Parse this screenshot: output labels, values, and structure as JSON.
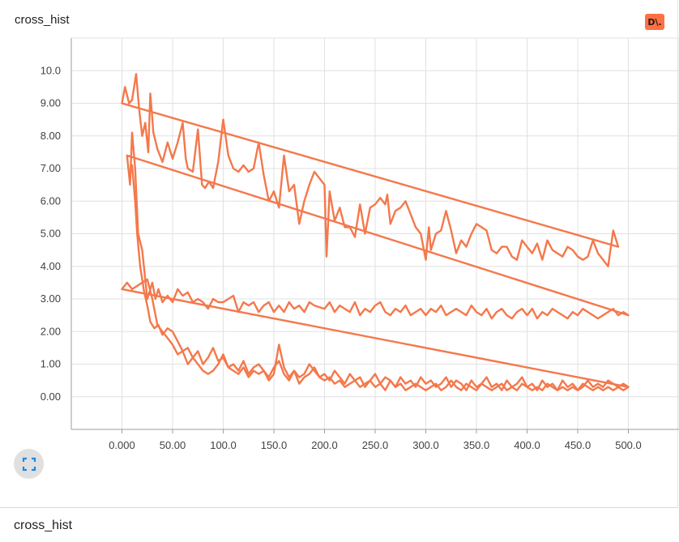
{
  "card": {
    "title": "cross_hist",
    "badge": "D\\."
  },
  "footer": {
    "title": "cross_hist"
  },
  "colors": {
    "accent": "#ff7043",
    "line": "#f4784b",
    "grid": "#e0e0e0",
    "fullscreen_icon": "#1e88e5"
  },
  "icons": {
    "fullscreen": "fullscreen-icon"
  },
  "chart_data": {
    "type": "line",
    "grid": true,
    "xlim": [
      -50,
      550
    ],
    "ylim": [
      -1,
      11
    ],
    "xticks": [
      "0.000",
      "50.00",
      "100.0",
      "150.0",
      "200.0",
      "250.0",
      "300.0",
      "350.0",
      "400.0",
      "450.0",
      "500.0"
    ],
    "yticks": [
      "0.00",
      "1.00",
      "2.00",
      "3.00",
      "4.00",
      "5.00",
      "6.00",
      "7.00",
      "8.00",
      "9.00",
      "10.0"
    ],
    "series": [
      {
        "color": "#f4784b",
        "x": [
          0,
          3,
          7,
          10,
          14,
          17,
          20,
          23,
          26,
          28,
          31,
          35,
          40,
          45,
          50,
          55,
          60,
          63,
          65,
          70,
          75,
          79,
          82,
          86,
          90,
          95,
          100,
          105,
          110,
          115,
          120,
          125,
          130,
          135,
          140,
          145,
          150,
          155,
          160,
          165,
          170,
          175,
          180,
          185,
          190,
          200,
          202,
          205,
          210,
          215,
          220,
          225,
          230,
          235,
          240,
          245,
          250,
          255,
          260,
          262,
          265,
          270,
          275,
          280,
          285,
          290,
          295,
          300,
          303,
          305,
          310,
          315,
          320,
          325,
          330,
          335,
          340,
          345,
          350,
          355,
          360,
          365,
          370,
          375,
          380,
          385,
          390,
          395,
          400,
          405,
          410,
          415,
          420,
          425,
          430,
          435,
          440,
          445,
          450,
          455,
          460,
          465,
          470,
          475,
          480,
          485,
          490,
          0
        ],
        "y": [
          9.0,
          9.5,
          9.0,
          9.1,
          9.9,
          8.8,
          8.0,
          8.4,
          7.5,
          9.3,
          8.1,
          7.6,
          7.2,
          7.8,
          7.3,
          7.8,
          8.4,
          7.3,
          7.0,
          6.9,
          8.2,
          6.5,
          6.4,
          6.6,
          6.4,
          7.2,
          8.5,
          7.4,
          7.0,
          6.9,
          7.1,
          6.9,
          7.0,
          7.8,
          6.8,
          6.0,
          6.3,
          5.8,
          7.4,
          6.3,
          6.5,
          5.3,
          6.0,
          6.5,
          6.9,
          6.5,
          4.3,
          6.3,
          5.4,
          5.8,
          5.2,
          5.2,
          4.9,
          5.9,
          5.0,
          5.8,
          5.9,
          6.1,
          5.9,
          6.2,
          5.3,
          5.7,
          5.8,
          6.0,
          5.6,
          5.2,
          5.0,
          4.2,
          5.2,
          4.5,
          5.0,
          5.1,
          5.7,
          5.1,
          4.4,
          4.8,
          4.6,
          5.0,
          5.3,
          5.2,
          5.1,
          4.5,
          4.4,
          4.6,
          4.6,
          4.3,
          4.2,
          4.8,
          4.6,
          4.4,
          4.7,
          4.2,
          4.8,
          4.5,
          4.4,
          4.3,
          4.6,
          4.5,
          4.3,
          4.2,
          4.3,
          4.8,
          4.4,
          4.2,
          4.0,
          5.1,
          4.6,
          9.0
        ]
      },
      {
        "color": "#f4784b",
        "x": [
          5,
          8,
          10,
          13,
          16,
          20,
          25,
          30,
          33,
          36,
          40,
          45,
          50,
          55,
          60,
          65,
          70,
          75,
          80,
          85,
          90,
          95,
          100,
          105,
          110,
          115,
          120,
          125,
          130,
          135,
          140,
          145,
          150,
          155,
          160,
          165,
          170,
          175,
          180,
          185,
          190,
          200,
          205,
          210,
          215,
          220,
          225,
          230,
          235,
          240,
          245,
          250,
          255,
          260,
          265,
          270,
          275,
          280,
          285,
          290,
          295,
          300,
          305,
          310,
          315,
          320,
          325,
          330,
          335,
          340,
          345,
          350,
          355,
          360,
          365,
          370,
          375,
          380,
          385,
          390,
          395,
          400,
          405,
          410,
          415,
          420,
          425,
          430,
          435,
          440,
          445,
          450,
          455,
          460,
          465,
          470,
          475,
          480,
          485,
          490,
          495,
          500,
          5
        ],
        "y": [
          7.4,
          6.5,
          8.1,
          7.0,
          5.0,
          4.5,
          3.0,
          3.5,
          3.0,
          3.3,
          2.9,
          3.1,
          2.9,
          3.3,
          3.1,
          3.2,
          2.9,
          3.0,
          2.9,
          2.7,
          3.0,
          2.9,
          2.9,
          3.0,
          3.1,
          2.6,
          2.9,
          2.8,
          2.9,
          2.6,
          2.8,
          2.9,
          2.6,
          2.8,
          2.6,
          2.9,
          2.7,
          2.8,
          2.6,
          2.9,
          2.8,
          2.7,
          2.9,
          2.6,
          2.8,
          2.7,
          2.6,
          2.9,
          2.5,
          2.7,
          2.6,
          2.8,
          2.9,
          2.6,
          2.5,
          2.7,
          2.6,
          2.8,
          2.5,
          2.6,
          2.7,
          2.5,
          2.7,
          2.6,
          2.8,
          2.5,
          2.6,
          2.7,
          2.6,
          2.5,
          2.8,
          2.6,
          2.5,
          2.7,
          2.4,
          2.6,
          2.7,
          2.5,
          2.4,
          2.6,
          2.7,
          2.5,
          2.7,
          2.4,
          2.6,
          2.5,
          2.7,
          2.6,
          2.5,
          2.4,
          2.6,
          2.5,
          2.7,
          2.6,
          2.5,
          2.4,
          2.5,
          2.6,
          2.7,
          2.5,
          2.6,
          2.5,
          7.4
        ]
      },
      {
        "color": "#f4784b",
        "x": [
          0,
          5,
          10,
          15,
          20,
          25,
          30,
          35,
          40,
          45,
          50,
          55,
          60,
          65,
          70,
          75,
          80,
          85,
          90,
          95,
          100,
          105,
          110,
          115,
          120,
          125,
          130,
          135,
          140,
          145,
          150,
          155,
          160,
          165,
          170,
          175,
          180,
          185,
          190,
          195,
          200,
          205,
          210,
          215,
          220,
          225,
          230,
          235,
          240,
          245,
          250,
          255,
          260,
          265,
          270,
          275,
          280,
          285,
          290,
          295,
          300,
          305,
          310,
          315,
          320,
          325,
          330,
          335,
          340,
          345,
          350,
          355,
          360,
          365,
          370,
          375,
          380,
          385,
          390,
          395,
          400,
          405,
          410,
          415,
          420,
          425,
          430,
          435,
          440,
          445,
          450,
          455,
          460,
          465,
          470,
          475,
          480,
          485,
          490,
          495,
          500,
          0
        ],
        "y": [
          3.3,
          3.5,
          3.3,
          3.4,
          3.5,
          3.6,
          3.0,
          2.2,
          2.0,
          1.8,
          1.6,
          1.3,
          1.4,
          1.0,
          1.2,
          1.0,
          0.8,
          0.7,
          0.8,
          1.0,
          1.3,
          0.9,
          0.8,
          0.7,
          0.9,
          0.6,
          0.8,
          0.7,
          0.8,
          0.5,
          0.7,
          1.6,
          0.9,
          0.6,
          0.8,
          0.4,
          0.6,
          0.7,
          0.9,
          0.6,
          0.5,
          0.6,
          0.4,
          0.5,
          0.3,
          0.4,
          0.5,
          0.3,
          0.4,
          0.5,
          0.3,
          0.4,
          0.2,
          0.5,
          0.3,
          0.4,
          0.2,
          0.3,
          0.4,
          0.3,
          0.2,
          0.3,
          0.4,
          0.2,
          0.3,
          0.5,
          0.3,
          0.2,
          0.4,
          0.3,
          0.2,
          0.4,
          0.3,
          0.2,
          0.3,
          0.4,
          0.2,
          0.3,
          0.2,
          0.4,
          0.3,
          0.2,
          0.3,
          0.2,
          0.4,
          0.3,
          0.2,
          0.3,
          0.2,
          0.3,
          0.2,
          0.4,
          0.3,
          0.2,
          0.3,
          0.2,
          0.3,
          0.2,
          0.3,
          0.2,
          0.3,
          3.3
        ]
      },
      {
        "color": "#f4784b",
        "x": [
          10,
          13,
          15,
          18,
          22,
          25,
          28,
          32,
          36,
          40,
          45,
          50,
          55,
          60,
          65,
          70,
          75,
          80,
          85,
          90,
          95,
          100,
          105,
          110,
          115,
          120,
          125,
          130,
          135,
          140,
          145,
          150,
          155,
          160,
          165,
          170,
          175,
          180,
          185,
          190,
          195,
          200,
          205,
          210,
          215,
          220,
          225,
          230,
          235,
          240,
          245,
          250,
          255,
          260,
          265,
          270,
          275,
          280,
          285,
          290,
          295,
          300,
          305,
          310,
          315,
          320,
          325,
          330,
          335,
          340,
          345,
          350,
          355,
          360,
          365,
          370,
          375,
          380,
          385,
          390,
          395,
          400,
          405,
          410,
          415,
          420,
          425,
          430,
          435,
          440,
          445,
          450,
          455,
          460,
          465,
          470,
          475,
          480,
          485,
          490,
          495,
          500
        ],
        "y": [
          7.1,
          6.0,
          5.0,
          4.0,
          3.2,
          2.8,
          2.3,
          2.1,
          2.2,
          1.9,
          2.1,
          2.0,
          1.7,
          1.4,
          1.5,
          1.2,
          1.4,
          1.0,
          1.2,
          1.5,
          1.1,
          1.2,
          0.9,
          1.0,
          0.8,
          1.1,
          0.7,
          0.9,
          1.0,
          0.8,
          0.6,
          0.9,
          1.1,
          0.7,
          0.5,
          0.8,
          0.6,
          0.7,
          1.0,
          0.8,
          0.6,
          0.7,
          0.5,
          0.8,
          0.6,
          0.4,
          0.7,
          0.5,
          0.6,
          0.3,
          0.5,
          0.7,
          0.4,
          0.6,
          0.5,
          0.3,
          0.6,
          0.4,
          0.5,
          0.3,
          0.6,
          0.4,
          0.5,
          0.3,
          0.4,
          0.6,
          0.3,
          0.5,
          0.4,
          0.2,
          0.5,
          0.3,
          0.4,
          0.6,
          0.3,
          0.4,
          0.2,
          0.5,
          0.3,
          0.4,
          0.6,
          0.3,
          0.4,
          0.2,
          0.5,
          0.3,
          0.4,
          0.2,
          0.5,
          0.3,
          0.4,
          0.2,
          0.3,
          0.5,
          0.3,
          0.4,
          0.3,
          0.5,
          0.4,
          0.3,
          0.4,
          0.3
        ]
      }
    ]
  }
}
